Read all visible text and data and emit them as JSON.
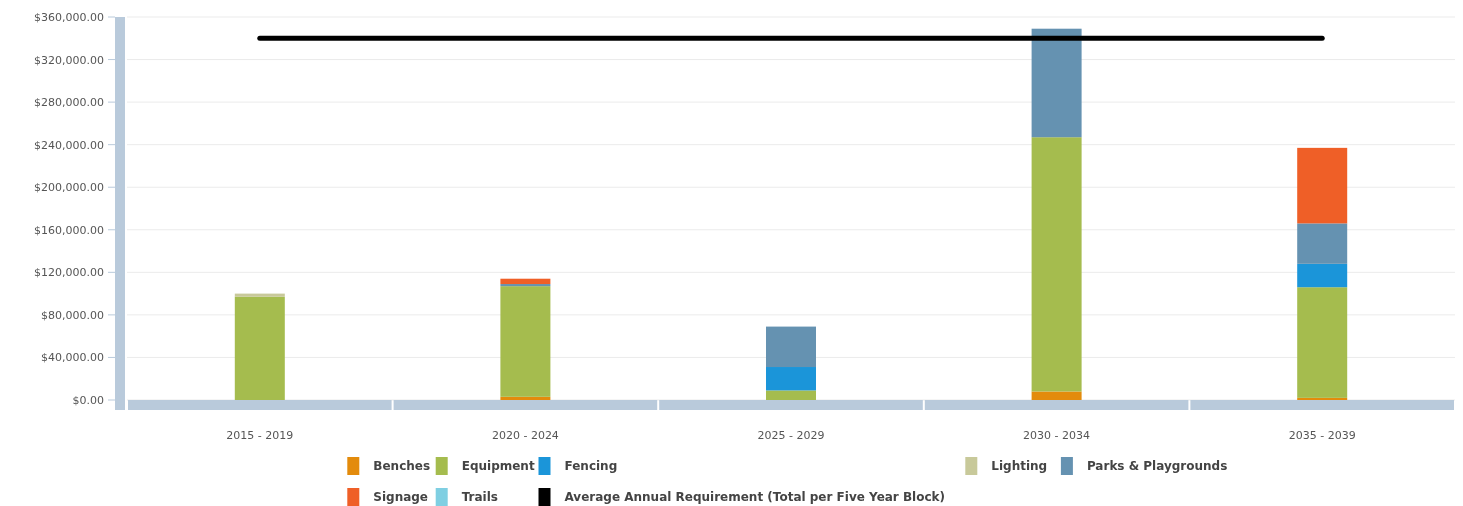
{
  "chart_data": {
    "type": "bar",
    "stacked": true,
    "categories": [
      "2015 - 2019",
      "2020 - 2024",
      "2025 - 2029",
      "2030 - 2034",
      "2035 - 2039"
    ],
    "series": [
      {
        "name": "Benches",
        "color": "#e38b0c",
        "values": [
          0,
          3000,
          0,
          8000,
          2000
        ]
      },
      {
        "name": "Equipment",
        "color": "#a5bc4e",
        "values": [
          97000,
          104000,
          9000,
          239000,
          104000
        ]
      },
      {
        "name": "Fencing",
        "color": "#1b95d9",
        "values": [
          0,
          0,
          22000,
          0,
          22000
        ]
      },
      {
        "name": "Lighting",
        "color": "#c8c99a",
        "values": [
          3000,
          0,
          0,
          0,
          0
        ]
      },
      {
        "name": "Parks & Playgrounds",
        "color": "#6592b1",
        "values": [
          0,
          2000,
          38000,
          102000,
          38000
        ]
      },
      {
        "name": "Signage",
        "color": "#ef5f27",
        "values": [
          0,
          5000,
          0,
          0,
          71000
        ]
      },
      {
        "name": "Trails",
        "color": "#7fcfe2",
        "values": [
          0,
          0,
          0,
          0,
          0
        ]
      },
      {
        "name": "Average Annual Requirement (Total per Five Year Block)",
        "color": "#000000",
        "type": "line",
        "values": [
          340000,
          340000,
          340000,
          340000,
          340000
        ]
      }
    ],
    "ylim": [
      0,
      360000
    ],
    "yticks": [
      {
        "value": 0,
        "label": "$0.00"
      },
      {
        "value": 40000,
        "label": "$40,000.00"
      },
      {
        "value": 80000,
        "label": "$80,000.00"
      },
      {
        "value": 120000,
        "label": "$120,000.00"
      },
      {
        "value": 160000,
        "label": "$160,000.00"
      },
      {
        "value": 200000,
        "label": "$200,000.00"
      },
      {
        "value": 240000,
        "label": "$240,000.00"
      },
      {
        "value": 280000,
        "label": "$280,000.00"
      },
      {
        "value": 320000,
        "label": "$320,000.00"
      },
      {
        "value": 360000,
        "label": "$360,000.00"
      }
    ],
    "grid": "y",
    "legend": "bottom",
    "marker": "none",
    "line_style": "solid"
  }
}
